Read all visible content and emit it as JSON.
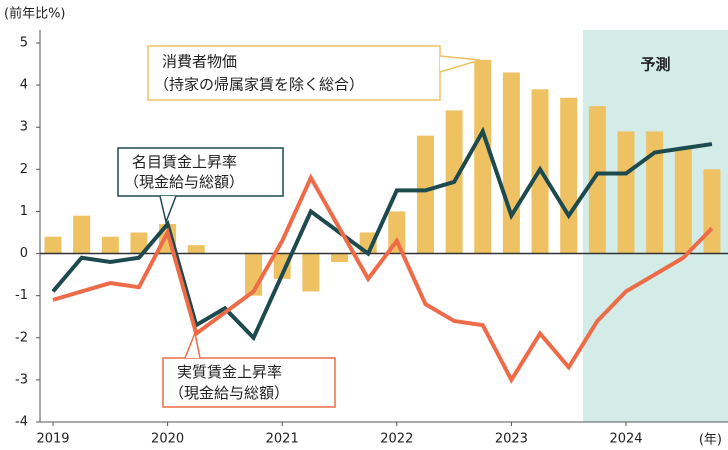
{
  "chart_data": {
    "type": "bar-line",
    "y_label": "(前年比%)",
    "x_unit_label": "(年)",
    "categories": [
      "2019",
      null,
      null,
      null,
      "2020",
      null,
      null,
      null,
      "2021",
      null,
      null,
      null,
      "2022",
      null,
      null,
      null,
      "2023",
      null,
      null,
      null,
      "2024",
      null,
      null,
      null
    ],
    "series": [
      {
        "name": "消費者物価",
        "detail": "（持家の帰属家賃を除く総合）",
        "kind": "bar",
        "color": "#eec262",
        "values": [
          0.4,
          0.9,
          0.4,
          0.5,
          0.7,
          0.2,
          0,
          -1.0,
          -0.6,
          -0.9,
          -0.2,
          0.5,
          1.0,
          2.8,
          3.4,
          4.6,
          4.3,
          3.9,
          3.7,
          3.5,
          2.9,
          2.9,
          2.5,
          2.0
        ]
      },
      {
        "name": "名目賃金上昇率",
        "detail": "（現金給与総額）",
        "kind": "line",
        "color": "#1d4a4e",
        "values": [
          -0.9,
          -0.1,
          -0.2,
          -0.1,
          0.7,
          -1.7,
          -1.3,
          -2.0,
          -0.5,
          1.0,
          0.5,
          0,
          1.5,
          1.5,
          1.7,
          2.9,
          0.9,
          2.0,
          0.9,
          1.9,
          1.9,
          2.4,
          2.5,
          2.6
        ]
      },
      {
        "name": "実質賃金上昇率",
        "detail": "（現金給与総額）",
        "kind": "line",
        "color": "#ee6b48",
        "values": [
          -1.1,
          -0.9,
          -0.7,
          -0.8,
          0.5,
          -1.9,
          -1.4,
          -0.9,
          0.3,
          1.8,
          0.6,
          -0.6,
          0.3,
          -1.2,
          -1.6,
          -1.7,
          -3.0,
          -1.9,
          -2.7,
          -1.6,
          -0.9,
          -0.5,
          -0.1,
          0.6
        ]
      }
    ],
    "forecast_label": "予測",
    "forecast_from": 19,
    "forecast_color": "#d3ece7",
    "ylim": [
      -4,
      5
    ],
    "yticks": [
      -4,
      -3,
      -2,
      -1,
      0,
      1,
      2,
      3,
      4,
      5
    ],
    "grid": false
  }
}
